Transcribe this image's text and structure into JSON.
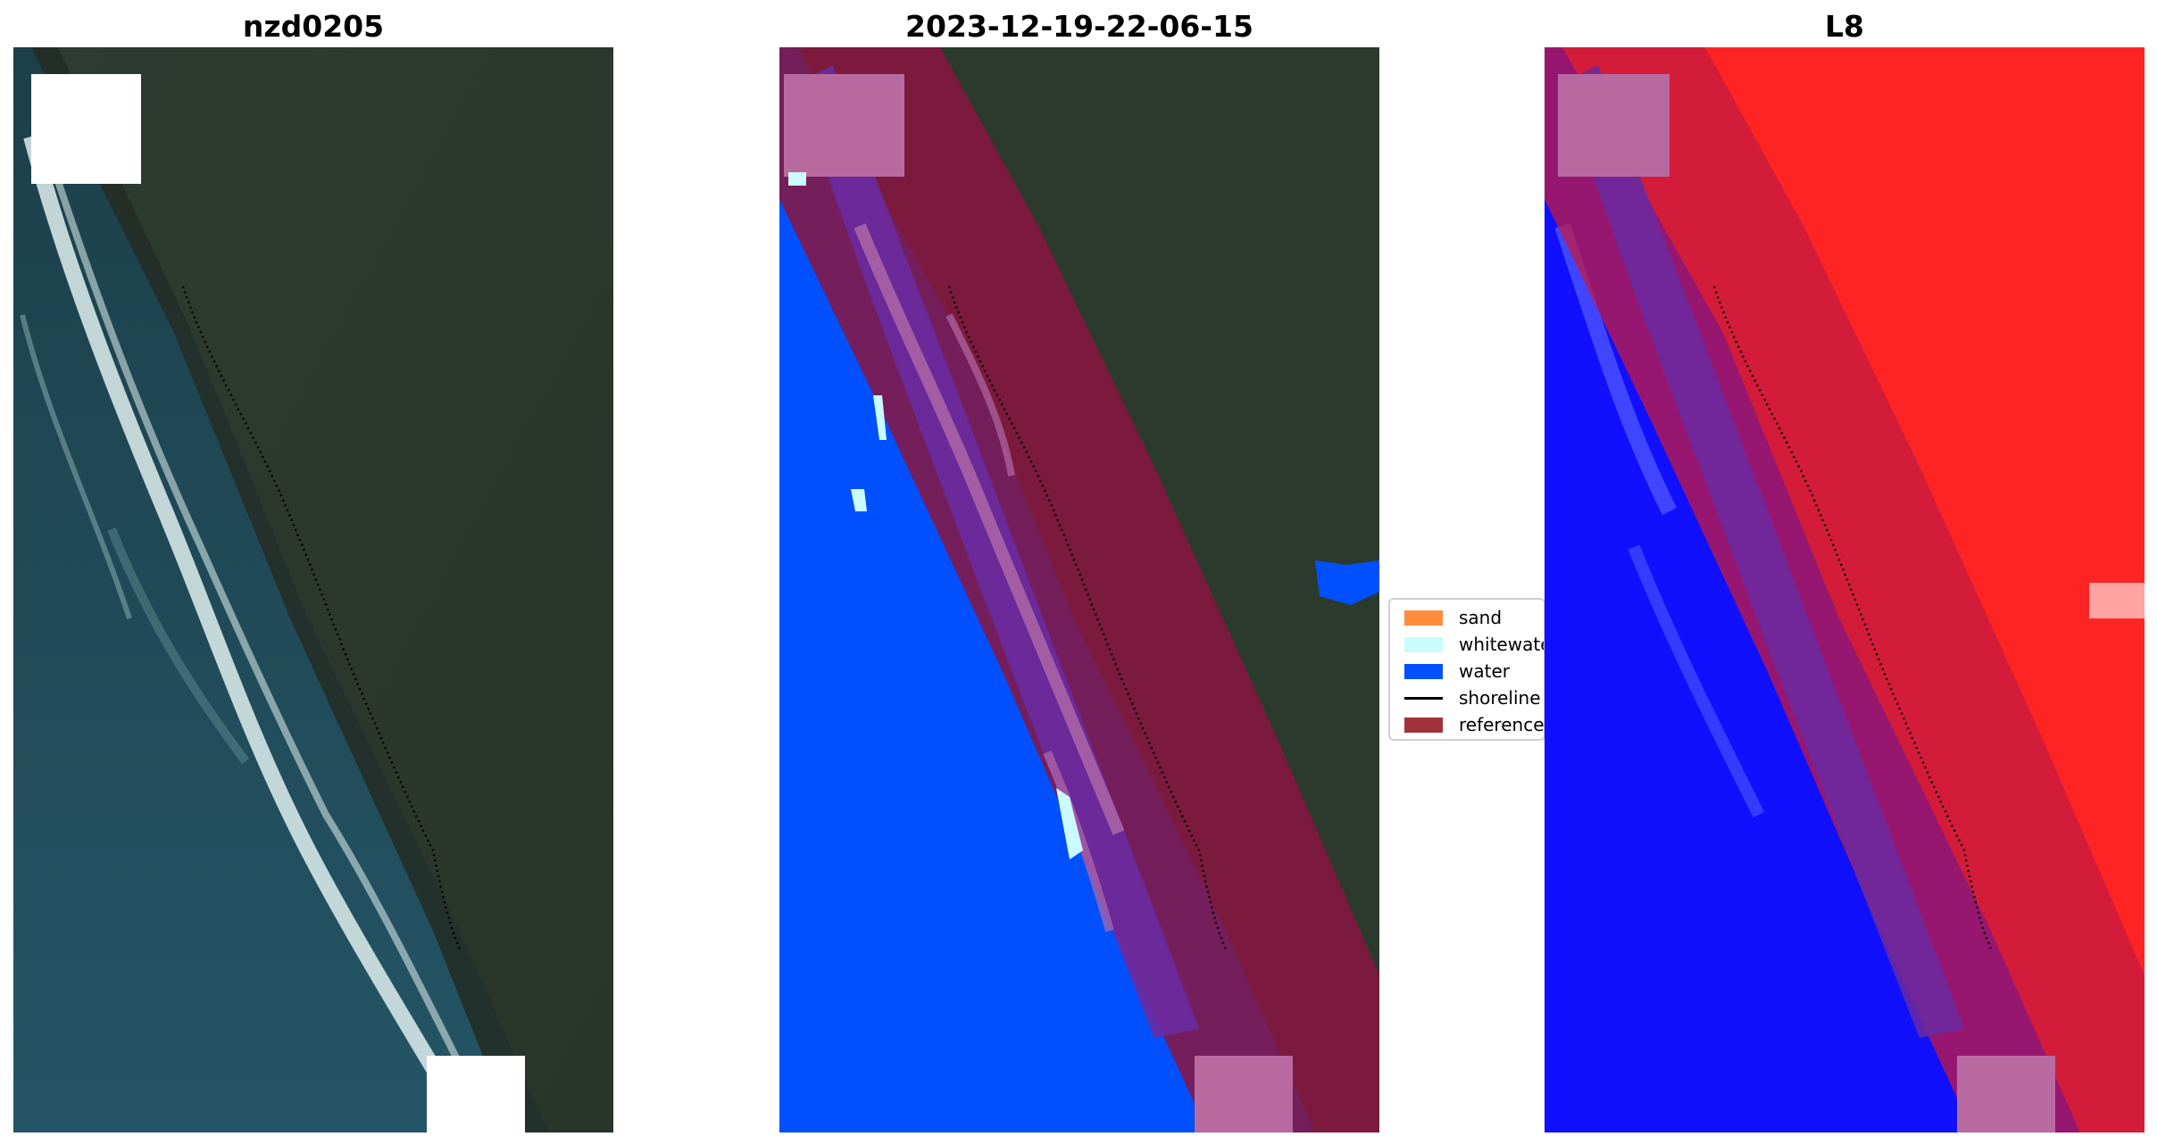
{
  "panels": [
    {
      "title": "nzd0205"
    },
    {
      "title": "2023-12-19-22-06-15"
    },
    {
      "title": "L8"
    }
  ],
  "legend": {
    "items": [
      {
        "label": "sand",
        "color": "#ff8c3c",
        "kind": "patch"
      },
      {
        "label": "whitewater",
        "color": "#c9fbff",
        "kind": "patch"
      },
      {
        "label": "water",
        "color": "#0050ff",
        "kind": "patch"
      },
      {
        "label": "shoreline",
        "color": "#000000",
        "kind": "line"
      },
      {
        "label": "reference shoreline buffer",
        "color": "#a0323a",
        "kind": "patch"
      }
    ]
  },
  "colors": {
    "land": "#2c3a2e",
    "ocean": "#1f4a55",
    "surf": "#d9e8e6",
    "water_class": "#0050ff",
    "buffer": "#8a1540",
    "index_water": "#1010ff",
    "index_land": "#ff2424"
  }
}
